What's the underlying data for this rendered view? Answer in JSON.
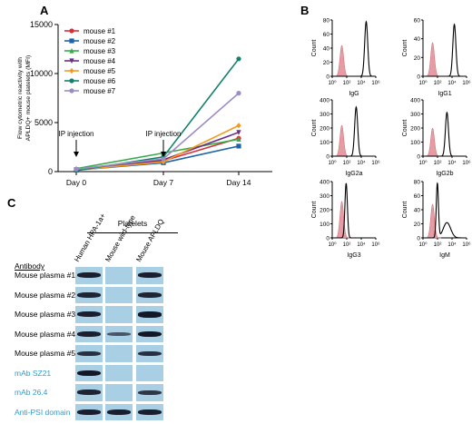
{
  "figure": {
    "panel_a_letter": "A",
    "panel_b_letter": "B",
    "panel_c_letter": "C"
  },
  "chart_data": [
    {
      "type": "line",
      "panel": "A",
      "ylabel": "Flow cytometric reactivity with APLDQ+ mouse platelets (MFI)",
      "categories": [
        "Day 0",
        "Day 7",
        "Day 14"
      ],
      "ylim": [
        0,
        15000
      ],
      "yticks": [
        0,
        5000,
        10000,
        15000
      ],
      "grid": false,
      "legend_position": "top-left",
      "annotations": [
        {
          "text": "IP injection",
          "category": "Day 0"
        },
        {
          "text": "IP injection",
          "category": "Day 7"
        }
      ],
      "series": [
        {
          "name": "mouse #1",
          "color": "#d62f3a",
          "marker": "circle",
          "values": [
            200,
            1100,
            3400
          ]
        },
        {
          "name": "mouse #2",
          "color": "#1f64a8",
          "marker": "square",
          "values": [
            150,
            900,
            2600
          ]
        },
        {
          "name": "mouse #3",
          "color": "#3aaa49",
          "marker": "triangle",
          "values": [
            300,
            1900,
            3300
          ]
        },
        {
          "name": "mouse #4",
          "color": "#6c2f86",
          "marker": "triangle-down",
          "values": [
            200,
            1200,
            4000
          ]
        },
        {
          "name": "mouse #5",
          "color": "#f39a1f",
          "marker": "diamond",
          "values": [
            150,
            1000,
            4700
          ]
        },
        {
          "name": "mouse #6",
          "color": "#13816b",
          "marker": "circle",
          "values": [
            100,
            1500,
            11500
          ]
        },
        {
          "name": "mouse #7",
          "color": "#9c8cc4",
          "marker": "circle",
          "values": [
            250,
            1300,
            8000
          ]
        }
      ]
    },
    {
      "type": "histogram_grid",
      "panel": "B",
      "ylabel": "Count",
      "xscale": "log",
      "xticks": [
        "10^0",
        "10^2",
        "10^4",
        "10^6"
      ],
      "fill_color": "#e79ba3",
      "plots": [
        {
          "label": "IgG",
          "yticks": [
            "0",
            "20",
            "40",
            "60",
            "80"
          ],
          "ymax": 80
        },
        {
          "label": "IgG1",
          "yticks": [
            "0",
            "20",
            "40",
            "60"
          ],
          "ymax": 60
        },
        {
          "label": "IgG2a",
          "yticks": [
            "0",
            "100",
            "200",
            "300",
            "400"
          ],
          "ymax": 400
        },
        {
          "label": "IgG2b",
          "yticks": [
            "0",
            "100",
            "200",
            "300",
            "400"
          ],
          "ymax": 400
        },
        {
          "label": "IgG3",
          "yticks": [
            "0",
            "100",
            "200",
            "300",
            "400"
          ],
          "ymax": 400
        },
        {
          "label": "IgM",
          "yticks": [
            "0",
            "20",
            "40",
            "60",
            "80"
          ],
          "ymax": 80
        }
      ],
      "xtick_labels": [
        "10⁰",
        "10²",
        "10⁴",
        "10⁶"
      ]
    },
    {
      "type": "table",
      "panel": "C",
      "group_header": "Platelets",
      "row_header": "Antibody",
      "columns": [
        "Human HPA-1a+",
        "Mouse wild-type",
        "Mouse APLDQ"
      ],
      "rows": [
        {
          "label": "Mouse plasma #1",
          "color": "black",
          "bands": [
            0.85,
            0,
            0.85
          ]
        },
        {
          "label": "Mouse plasma #2",
          "color": "black",
          "bands": [
            0.8,
            0,
            0.8
          ]
        },
        {
          "label": "Mouse plasma #3",
          "color": "black",
          "bands": [
            0.85,
            0,
            0.9
          ]
        },
        {
          "label": "Mouse plasma #4",
          "color": "black",
          "bands": [
            0.85,
            0.4,
            0.9
          ]
        },
        {
          "label": "Mouse plasma #5",
          "color": "black",
          "bands": [
            0.7,
            0,
            0.7
          ]
        },
        {
          "label": "mAb SZ21",
          "color": "blue",
          "bands": [
            0.9,
            0,
            0
          ]
        },
        {
          "label": "mAb 26.4",
          "color": "blue",
          "bands": [
            0.8,
            0,
            0.65
          ]
        },
        {
          "label": "Anti-PSI domain",
          "color": "blue",
          "bands": [
            0.85,
            0.85,
            0.85
          ]
        }
      ]
    }
  ]
}
